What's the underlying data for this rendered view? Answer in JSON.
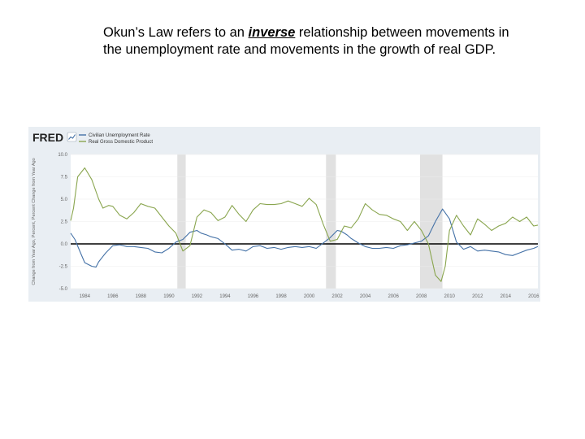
{
  "slide": {
    "text_before": "Okun’s Law refers to an ",
    "emphasis": "inverse",
    "text_after": " relationship between movements in the unemployment rate and movements in the growth of real GDP."
  },
  "fred_logo": "FRED",
  "chart_data": {
    "type": "line",
    "ylabel": "Change from Year Ago, Percent, Percent Change from Year Ago",
    "ylim": [
      -5.0,
      10.0
    ],
    "yticks": [
      "10.0",
      "7.5",
      "5.0",
      "2.5",
      "0.0",
      "-2.5",
      "-5.0"
    ],
    "xlim": [
      1983.0,
      2016.3
    ],
    "xticks": [
      "1984",
      "1986",
      "1988",
      "1990",
      "1992",
      "1994",
      "1996",
      "1998",
      "2000",
      "2002",
      "2004",
      "2006",
      "2008",
      "2010",
      "2012",
      "2014",
      "2016"
    ],
    "recessions": [
      [
        1990.6,
        1991.2
      ],
      [
        2001.2,
        2001.9
      ],
      [
        2007.9,
        2009.5
      ]
    ],
    "legend_position": "top-left",
    "grid": true,
    "series": [
      {
        "name": "Civilian Unemployment Rate",
        "color": "#4572a7",
        "points": [
          [
            1983.0,
            1.2
          ],
          [
            1983.3,
            0.5
          ],
          [
            1983.7,
            -1.0
          ],
          [
            1984.0,
            -2.1
          ],
          [
            1984.5,
            -2.5
          ],
          [
            1984.8,
            -2.6
          ],
          [
            1985.0,
            -2.0
          ],
          [
            1985.5,
            -1.0
          ],
          [
            1986.0,
            -0.2
          ],
          [
            1986.5,
            -0.1
          ],
          [
            1987.0,
            -0.3
          ],
          [
            1987.5,
            -0.3
          ],
          [
            1988.0,
            -0.4
          ],
          [
            1988.5,
            -0.5
          ],
          [
            1989.0,
            -0.9
          ],
          [
            1989.5,
            -1.0
          ],
          [
            1990.0,
            -0.5
          ],
          [
            1990.5,
            0.2
          ],
          [
            1991.0,
            0.5
          ],
          [
            1991.5,
            1.3
          ],
          [
            1992.0,
            1.5
          ],
          [
            1992.3,
            1.2
          ],
          [
            1992.7,
            1.0
          ],
          [
            1993.0,
            0.8
          ],
          [
            1993.5,
            0.6
          ],
          [
            1994.0,
            0.0
          ],
          [
            1994.5,
            -0.7
          ],
          [
            1995.0,
            -0.6
          ],
          [
            1995.5,
            -0.8
          ],
          [
            1996.0,
            -0.3
          ],
          [
            1996.5,
            -0.2
          ],
          [
            1997.0,
            -0.5
          ],
          [
            1997.5,
            -0.4
          ],
          [
            1998.0,
            -0.6
          ],
          [
            1998.5,
            -0.4
          ],
          [
            1999.0,
            -0.3
          ],
          [
            1999.5,
            -0.4
          ],
          [
            2000.0,
            -0.3
          ],
          [
            2000.5,
            -0.5
          ],
          [
            2001.0,
            0.1
          ],
          [
            2001.5,
            0.7
          ],
          [
            2002.0,
            1.5
          ],
          [
            2002.3,
            1.4
          ],
          [
            2002.7,
            1.0
          ],
          [
            2003.0,
            0.6
          ],
          [
            2003.5,
            0.1
          ],
          [
            2004.0,
            -0.3
          ],
          [
            2004.5,
            -0.5
          ],
          [
            2005.0,
            -0.5
          ],
          [
            2005.5,
            -0.4
          ],
          [
            2006.0,
            -0.5
          ],
          [
            2006.5,
            -0.2
          ],
          [
            2007.0,
            -0.1
          ],
          [
            2007.5,
            0.1
          ],
          [
            2008.0,
            0.3
          ],
          [
            2008.5,
            0.9
          ],
          [
            2009.0,
            2.5
          ],
          [
            2009.5,
            3.9
          ],
          [
            2010.0,
            2.8
          ],
          [
            2010.5,
            0.2
          ],
          [
            2011.0,
            -0.6
          ],
          [
            2011.5,
            -0.3
          ],
          [
            2012.0,
            -0.8
          ],
          [
            2012.5,
            -0.7
          ],
          [
            2013.0,
            -0.8
          ],
          [
            2013.5,
            -0.9
          ],
          [
            2014.0,
            -1.2
          ],
          [
            2014.5,
            -1.3
          ],
          [
            2015.0,
            -1.0
          ],
          [
            2015.5,
            -0.7
          ],
          [
            2016.0,
            -0.5
          ],
          [
            2016.3,
            -0.3
          ]
        ]
      },
      {
        "name": "Real Gross Domestic Product",
        "color": "#89a54e",
        "points": [
          [
            1983.0,
            2.6
          ],
          [
            1983.2,
            4.0
          ],
          [
            1983.5,
            7.5
          ],
          [
            1984.0,
            8.5
          ],
          [
            1984.5,
            7.2
          ],
          [
            1985.0,
            5.0
          ],
          [
            1985.3,
            4.0
          ],
          [
            1985.7,
            4.3
          ],
          [
            1986.0,
            4.2
          ],
          [
            1986.5,
            3.2
          ],
          [
            1987.0,
            2.8
          ],
          [
            1987.5,
            3.5
          ],
          [
            1988.0,
            4.5
          ],
          [
            1988.5,
            4.2
          ],
          [
            1989.0,
            4.0
          ],
          [
            1989.5,
            3.0
          ],
          [
            1990.0,
            2.0
          ],
          [
            1990.5,
            1.2
          ],
          [
            1991.0,
            -0.8
          ],
          [
            1991.5,
            -0.2
          ],
          [
            1992.0,
            3.0
          ],
          [
            1992.5,
            3.8
          ],
          [
            1993.0,
            3.5
          ],
          [
            1993.5,
            2.6
          ],
          [
            1994.0,
            3.0
          ],
          [
            1994.5,
            4.3
          ],
          [
            1995.0,
            3.3
          ],
          [
            1995.5,
            2.5
          ],
          [
            1996.0,
            3.8
          ],
          [
            1996.5,
            4.5
          ],
          [
            1997.0,
            4.4
          ],
          [
            1997.5,
            4.4
          ],
          [
            1998.0,
            4.5
          ],
          [
            1998.5,
            4.8
          ],
          [
            1999.0,
            4.5
          ],
          [
            1999.5,
            4.2
          ],
          [
            2000.0,
            5.1
          ],
          [
            2000.5,
            4.4
          ],
          [
            2001.0,
            2.2
          ],
          [
            2001.5,
            0.3
          ],
          [
            2002.0,
            0.5
          ],
          [
            2002.5,
            2.0
          ],
          [
            2003.0,
            1.8
          ],
          [
            2003.5,
            2.8
          ],
          [
            2004.0,
            4.5
          ],
          [
            2004.5,
            3.8
          ],
          [
            2005.0,
            3.3
          ],
          [
            2005.5,
            3.2
          ],
          [
            2006.0,
            2.8
          ],
          [
            2006.5,
            2.5
          ],
          [
            2007.0,
            1.5
          ],
          [
            2007.5,
            2.5
          ],
          [
            2008.0,
            1.5
          ],
          [
            2008.5,
            0.0
          ],
          [
            2009.0,
            -3.5
          ],
          [
            2009.4,
            -4.2
          ],
          [
            2009.7,
            -2.5
          ],
          [
            2010.0,
            1.5
          ],
          [
            2010.5,
            3.2
          ],
          [
            2011.0,
            2.0
          ],
          [
            2011.5,
            1.0
          ],
          [
            2012.0,
            2.8
          ],
          [
            2012.5,
            2.2
          ],
          [
            2013.0,
            1.5
          ],
          [
            2013.5,
            2.0
          ],
          [
            2014.0,
            2.3
          ],
          [
            2014.5,
            3.0
          ],
          [
            2015.0,
            2.5
          ],
          [
            2015.5,
            3.0
          ],
          [
            2016.0,
            2.0
          ],
          [
            2016.3,
            2.1
          ]
        ]
      }
    ]
  }
}
